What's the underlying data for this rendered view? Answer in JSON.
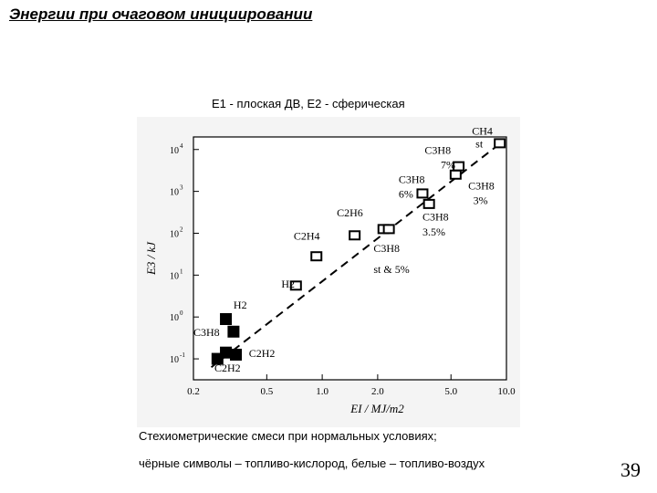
{
  "slide": {
    "title": "Энергии при очаговом инициировании",
    "caption_top": "E1  - плоская ДВ, E2  - сферическая",
    "note_line1": "Стехиометрические смеси при нормальных условиях;",
    "note_line2": "чёрные  символы – топливо-кислород, белые – топливо-воздух",
    "page_number": "39"
  },
  "chart_data": {
    "type": "scatter",
    "xscale": "log",
    "yscale": "log",
    "xlim": [
      0.2,
      10.0
    ],
    "ylim_exp": [
      -1.5,
      4.3
    ],
    "xticks": [
      0.2,
      0.5,
      1.0,
      2.0,
      5.0,
      10.0
    ],
    "xtick_labels": [
      "0.2",
      "0.5",
      "1.0",
      "2.0",
      "5.0",
      "10.0"
    ],
    "yticks_exp": [
      -1,
      0,
      1,
      2,
      3,
      4
    ],
    "ytick_labels": [
      "10-1",
      "100",
      "101",
      "102",
      "103",
      "104"
    ],
    "xlabel": "EI / MJ/m2",
    "ylabel": "E3 / kJ",
    "fuel_oxygen": [
      {
        "label": "C3H8",
        "x": 0.27,
        "y_exp": -1.0
      },
      {
        "label": "C2H2",
        "x": 0.3,
        "y_exp": -0.85
      },
      {
        "label": "H2",
        "x": 0.3,
        "y_exp": -0.05
      },
      {
        "label": "",
        "x": 0.33,
        "y_exp": -0.35
      },
      {
        "label": "C2H2",
        "x": 0.34,
        "y_exp": -0.9
      }
    ],
    "fuel_air": [
      {
        "label": "H2",
        "x": 0.72,
        "y_exp": 0.75
      },
      {
        "label": "C2H4",
        "x": 0.93,
        "y_exp": 1.45
      },
      {
        "label": "C2H6",
        "x": 1.5,
        "y_exp": 1.95
      },
      {
        "label": "",
        "x": 2.15,
        "y_exp": 2.1
      },
      {
        "label": "C3H8 st & 5%",
        "x": 2.3,
        "y_exp": 2.1
      },
      {
        "label": "C3H8 6%",
        "x": 3.5,
        "y_exp": 2.95
      },
      {
        "label": "C3H8 3.5%",
        "x": 3.8,
        "y_exp": 2.7
      },
      {
        "label": "C3H8 7%",
        "x": 5.3,
        "y_exp": 3.4
      },
      {
        "label": "",
        "x": 5.5,
        "y_exp": 3.6
      },
      {
        "label": "CH4 st",
        "x": 9.2,
        "y_exp": 4.15
      }
    ],
    "fit_line": {
      "from": [
        0.25,
        -1.2
      ],
      "to": [
        9.6,
        4.2
      ]
    },
    "annotations": [
      {
        "text": "CH4",
        "x": 6.5,
        "y_exp": 4.35
      },
      {
        "text": "st",
        "x": 6.8,
        "y_exp": 4.05
      },
      {
        "text": "C3H8",
        "x": 3.6,
        "y_exp": 3.9
      },
      {
        "text": "7%",
        "x": 4.4,
        "y_exp": 3.55
      },
      {
        "text": "C3H8",
        "x": 2.6,
        "y_exp": 3.2
      },
      {
        "text": "6%",
        "x": 2.6,
        "y_exp": 2.85
      },
      {
        "text": "C3H8",
        "x": 6.2,
        "y_exp": 3.05
      },
      {
        "text": "3%",
        "x": 6.6,
        "y_exp": 2.7
      },
      {
        "text": "C2H6",
        "x": 1.2,
        "y_exp": 2.4
      },
      {
        "text": "C2H4",
        "x": 0.7,
        "y_exp": 1.85
      },
      {
        "text": "C3H8",
        "x": 3.5,
        "y_exp": 2.3
      },
      {
        "text": "3.5%",
        "x": 3.5,
        "y_exp": 1.95
      },
      {
        "text": "C3H8",
        "x": 1.9,
        "y_exp": 1.55
      },
      {
        "text": "st & 5%",
        "x": 1.9,
        "y_exp": 1.05
      },
      {
        "text": "H2",
        "x": 0.6,
        "y_exp": 0.7
      },
      {
        "text": "H2",
        "x": 0.33,
        "y_exp": 0.2
      },
      {
        "text": "C3H8",
        "x": 0.2,
        "y_exp": -0.45
      },
      {
        "text": "C2H2",
        "x": 0.4,
        "y_exp": -0.95
      },
      {
        "text": "C2H2",
        "x": 0.26,
        "y_exp": -1.3
      }
    ]
  }
}
